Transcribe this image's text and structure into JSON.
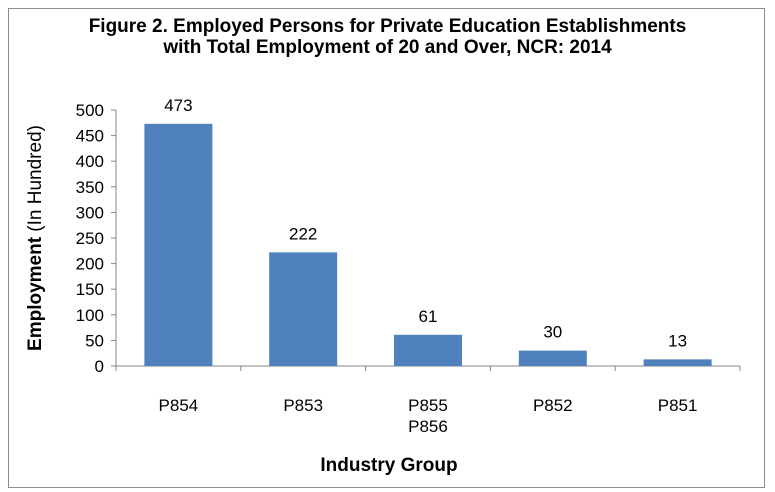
{
  "chart_data": {
    "type": "bar",
    "title": "Figure 2. Employed Persons for Private Education Establishments with Total Employment of 20 and Over, NCR: 2014",
    "title_lines": [
      "Figure 2. Employed Persons for Private Education Establishments",
      "with Total Employment of 20 and Over, NCR: 2014"
    ],
    "categories": [
      [
        "P854"
      ],
      [
        "P853"
      ],
      [
        "P855",
        "P856"
      ],
      [
        "P852"
      ],
      [
        "P851"
      ]
    ],
    "values": [
      473,
      222,
      61,
      30,
      13
    ],
    "data_labels": [
      "473",
      "222",
      "61",
      "30",
      "13"
    ],
    "xlabel": "Industry Group",
    "ylabel_bold": "Employment",
    "ylabel_rest": " (In Hundred)",
    "ylim": [
      0,
      500
    ],
    "yticks": [
      0,
      50,
      100,
      150,
      200,
      250,
      300,
      350,
      400,
      450,
      500
    ],
    "grid": false,
    "bar_color": "#4f81bd"
  }
}
